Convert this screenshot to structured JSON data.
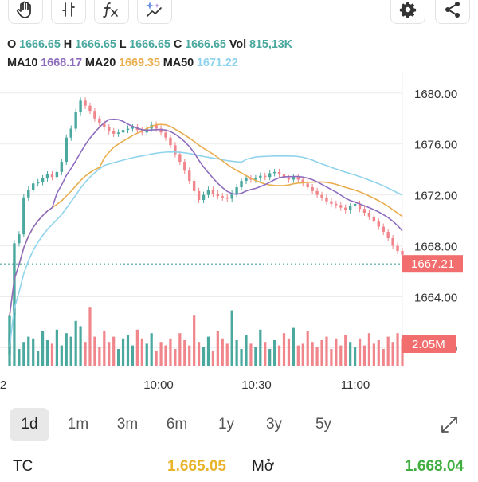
{
  "toolbar": {
    "left_icons": [
      "hand-icon",
      "ticks-icon",
      "fx-icon",
      "sparkle-chart-icon"
    ],
    "right_icons": [
      "gear-icon",
      "share-icon"
    ]
  },
  "ohlc": {
    "o_label": "O",
    "o": "1666.65",
    "h_label": "H",
    "h": "1666.65",
    "l_label": "L",
    "l": "1666.65",
    "c_label": "C",
    "c": "1666.65",
    "vol_label": "Vol",
    "vol": "815,13K"
  },
  "ma": {
    "ma10_label": "MA10",
    "ma10": "1668.17",
    "ma20_label": "MA20",
    "ma20": "1669.35",
    "ma50_label": "MA50",
    "ma50": "1671.22"
  },
  "colors": {
    "up": "#4aa89f",
    "down": "#f0868b",
    "ma10": "#8e6dbf",
    "ma20": "#e9ad4e",
    "ma50": "#8fd3ec",
    "price_tag": "#f26d6d",
    "grid": "#ececec",
    "ref_line": "#4aa89f"
  },
  "chart_data": {
    "type": "candlestick",
    "y_ticks": [
      "1680.00",
      "1676.00",
      "1672.00",
      "1668.00",
      "1664.00",
      "1660.00"
    ],
    "ylim": [
      1658.4,
      1681.8
    ],
    "x_ticks": [
      "2",
      "10:00",
      "10:30",
      "11:00"
    ],
    "price_tag": "1667.21",
    "price_level": 1667.21,
    "volume_tag": "2.05M",
    "closes": [
      1662.5,
      1668.2,
      1668.9,
      1671.8,
      1672.4,
      1672.9,
      1673.0,
      1673.3,
      1673.6,
      1673.4,
      1673.8,
      1674.6,
      1676.5,
      1677.2,
      1678.5,
      1679.4,
      1679.0,
      1678.6,
      1678.0,
      1677.6,
      1677.3,
      1677.0,
      1676.8,
      1676.9,
      1677.1,
      1677.2,
      1677.3,
      1677.1,
      1676.9,
      1677.2,
      1677.5,
      1677.2,
      1676.9,
      1676.5,
      1675.9,
      1675.2,
      1674.6,
      1673.9,
      1673.1,
      1672.3,
      1671.6,
      1672.0,
      1672.4,
      1672.1,
      1671.9,
      1671.8,
      1671.7,
      1672.1,
      1672.6,
      1673.1,
      1673.3,
      1673.2,
      1673.3,
      1673.5,
      1673.4,
      1673.7,
      1673.8,
      1673.6,
      1673.3,
      1673.2,
      1673.4,
      1673.2,
      1672.9,
      1672.6,
      1672.3,
      1672.0,
      1671.8,
      1671.5,
      1671.3,
      1671.2,
      1671.0,
      1670.8,
      1671.1,
      1671.3,
      1670.9,
      1670.6,
      1670.3,
      1669.9,
      1669.5,
      1669.1,
      1668.6,
      1668.0,
      1667.6,
      1667.3
    ],
    "volumes": [
      1.9,
      3.6,
      1.0,
      1.4,
      1.7,
      1.6,
      0.9,
      2.0,
      1.5,
      1.3,
      2.1,
      1.2,
      1.9,
      1.7,
      2.6,
      2.3,
      1.4,
      3.4,
      1.7,
      1.1,
      2.0,
      1.4,
      1.7,
      1.0,
      1.6,
      1.8,
      1.2,
      2.1,
      1.6,
      1.3,
      1.9,
      0.9,
      1.4,
      1.2,
      1.6,
      1.0,
      1.9,
      1.5,
      1.2,
      2.9,
      1.4,
      1.1,
      1.7,
      0.9,
      2.0,
      1.6,
      1.3,
      3.2,
      1.5,
      1.0,
      1.8,
      1.3,
      1.1,
      2.1,
      1.4,
      1.0,
      1.5,
      1.2,
      1.9,
      1.6,
      2.2,
      1.2,
      1.3,
      2.0,
      1.4,
      1.1,
      1.5,
      1.7,
      1.0,
      1.6,
      1.2,
      1.8,
      1.4,
      1.1,
      1.6,
      1.2,
      1.9,
      1.3,
      1.5,
      1.0,
      1.7,
      1.4,
      1.9,
      1.6
    ]
  },
  "ranges": {
    "items": [
      "1d",
      "1m",
      "3m",
      "6m",
      "1y",
      "3y",
      "5y"
    ],
    "active": "1d"
  },
  "stats": {
    "tc_label": "TC",
    "tc_value": "1.665.05",
    "open_label": "Mở",
    "open_value": "1.668.04",
    "tc_color": "#e9b32a",
    "open_color": "#3fae3f"
  }
}
